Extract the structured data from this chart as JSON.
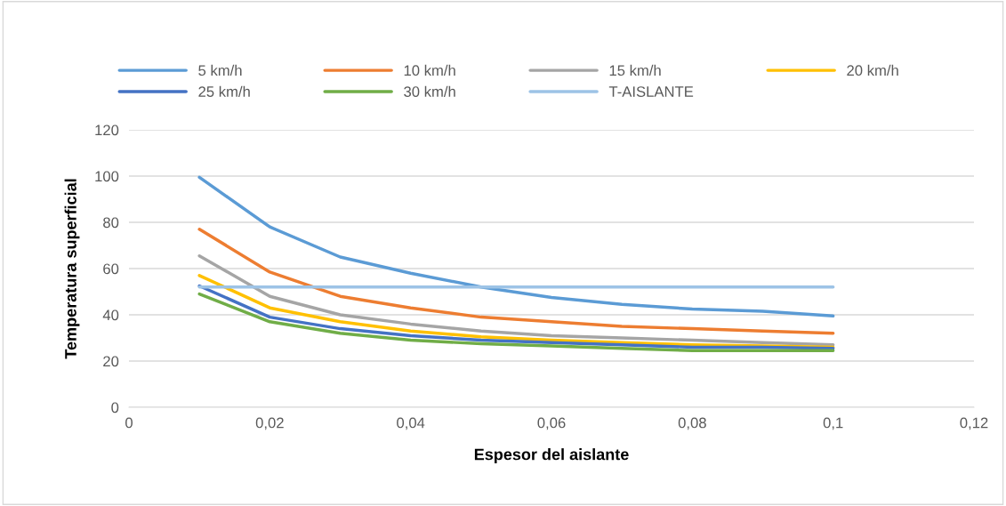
{
  "chart_data": {
    "type": "line",
    "xlabel": "Espesor del aislante",
    "ylabel": "Temperatura superficial",
    "x": [
      0.01,
      0.02,
      0.03,
      0.04,
      0.05,
      0.06,
      0.07,
      0.08,
      0.09,
      0.1
    ],
    "series": [
      {
        "name": "5 km/h",
        "color": "#5b9bd5",
        "values": [
          99.5,
          78,
          65,
          58,
          52,
          47.5,
          44.5,
          42.5,
          41.5,
          39.5
        ]
      },
      {
        "name": "10 km/h",
        "color": "#ed7d31",
        "values": [
          77,
          58.5,
          48,
          43,
          39,
          37,
          35,
          34,
          33,
          32
        ]
      },
      {
        "name": "15 km/h",
        "color": "#a5a5a5",
        "values": [
          65.5,
          48,
          40,
          36,
          33,
          31,
          30,
          29,
          28,
          27
        ]
      },
      {
        "name": "20 km/h",
        "color": "#ffc000",
        "values": [
          57,
          43,
          37,
          33,
          30.5,
          29,
          28,
          27,
          26.5,
          26
        ]
      },
      {
        "name": "25 km/h",
        "color": "#4472c4",
        "values": [
          52.5,
          39,
          34,
          31,
          29,
          28,
          27,
          26,
          26,
          25.5
        ]
      },
      {
        "name": "30 km/h",
        "color": "#70ad47",
        "values": [
          49,
          37,
          32,
          29,
          27.5,
          26.5,
          25.5,
          24.5,
          24.5,
          24.5
        ]
      },
      {
        "name": "T-AISLANTE",
        "color": "#9dc3e6",
        "values": [
          52,
          52,
          52,
          52,
          52,
          52,
          52,
          52,
          52,
          52
        ]
      }
    ],
    "xlim": [
      0,
      0.12
    ],
    "xticks": [
      0,
      {
        "value": 0.02,
        "label": "0,02"
      },
      {
        "value": 0.04,
        "label": "0,04"
      },
      {
        "value": 0.06,
        "label": "0,06"
      },
      {
        "value": 0.08,
        "label": "0,08"
      },
      {
        "value": 0.1,
        "label": "0,1"
      },
      {
        "value": 0.12,
        "label": "0,12"
      }
    ],
    "ylim": [
      0,
      120
    ],
    "yticks": [
      0,
      20,
      40,
      60,
      80,
      100,
      120
    ],
    "grid": "y",
    "legend": "top",
    "marker": "none",
    "line_style": "solid"
  }
}
